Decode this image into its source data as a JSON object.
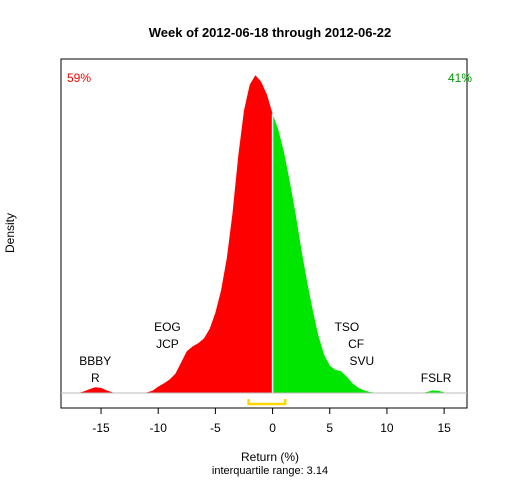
{
  "chart_data": {
    "type": "area",
    "title": "Week of 2012-06-18 through 2012-06-22",
    "xlabel": "Return (%)",
    "ylabel": "Density",
    "subtitle": "interquartile range: 3.14",
    "xlim": [
      -18.5,
      17
    ],
    "x_ticks": [
      "-15",
      "-10",
      "-5",
      "0",
      "5",
      "10",
      "15"
    ],
    "x_tick_values": [
      -15,
      -10,
      -5,
      0,
      5,
      10,
      15
    ],
    "split_x": 0,
    "ylim": [
      0,
      1
    ],
    "colors": {
      "negative": "#ff0000",
      "positive": "#00e600",
      "iqr": "#ffd700",
      "pct_negative": "#ff0000",
      "pct_positive": "#009900"
    },
    "pct_negative": "59%",
    "pct_positive": "41%",
    "iqr_range": [
      -2.1,
      1.1
    ],
    "density_x": [
      -17,
      -16.5,
      -16,
      -15.5,
      -15,
      -14.5,
      -14,
      -13.5,
      -13,
      -12.5,
      -12,
      -11.5,
      -11,
      -10.5,
      -10,
      -9.5,
      -9,
      -8.5,
      -8,
      -7.5,
      -7,
      -6.5,
      -6,
      -5.5,
      -5,
      -4.5,
      -4,
      -3.5,
      -3,
      -2.5,
      -2,
      -1.5,
      -1,
      -0.5,
      0,
      0.5,
      1,
      1.5,
      2,
      2.5,
      3,
      3.5,
      4,
      4.5,
      5,
      5.5,
      6,
      6.5,
      7,
      7.5,
      8,
      8.5,
      9,
      9.5,
      10,
      10.5,
      11,
      11.5,
      12,
      12.5,
      13,
      13.5,
      14,
      14.5,
      15
    ],
    "density_y": [
      0,
      0.005,
      0.012,
      0.018,
      0.016,
      0.008,
      0.002,
      0,
      0,
      0,
      0,
      0,
      0.002,
      0.007,
      0.02,
      0.03,
      0.042,
      0.06,
      0.095,
      0.13,
      0.145,
      0.155,
      0.17,
      0.2,
      0.25,
      0.32,
      0.42,
      0.56,
      0.74,
      0.88,
      0.96,
      0.99,
      0.97,
      0.93,
      0.87,
      0.82,
      0.75,
      0.66,
      0.56,
      0.45,
      0.35,
      0.26,
      0.18,
      0.12,
      0.085,
      0.072,
      0.068,
      0.05,
      0.03,
      0.016,
      0.008,
      0.003,
      0.001,
      0,
      0,
      0,
      0,
      0,
      0,
      0,
      0,
      0.003,
      0.008,
      0.007,
      0.002
    ],
    "annotations": [
      {
        "text": "BBBY",
        "x": -15.5,
        "row": 1
      },
      {
        "text": "R",
        "x": -15.5,
        "row": 0
      },
      {
        "text": "EOG",
        "x": -9.2,
        "row": 3
      },
      {
        "text": "JCP",
        "x": -9.2,
        "row": 2
      },
      {
        "text": "TSO",
        "x": 6.5,
        "row": 3
      },
      {
        "text": "CF",
        "x": 7.3,
        "row": 2
      },
      {
        "text": "SVU",
        "x": 7.8,
        "row": 1
      },
      {
        "text": "FSLR",
        "x": 14.3,
        "row": 0
      }
    ]
  }
}
